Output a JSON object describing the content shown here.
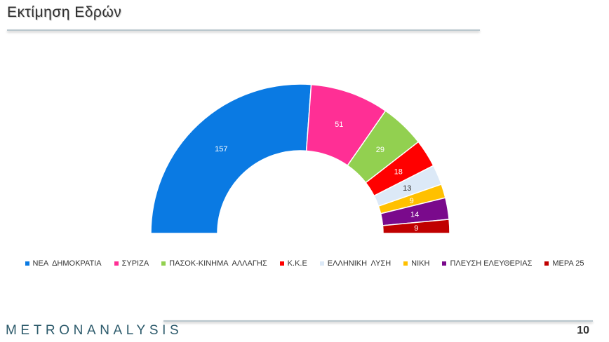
{
  "header": {
    "title": "Εκτίμηση Εδρών"
  },
  "footer": {
    "brand": "METRONANALYSIS",
    "page_number": "10"
  },
  "chart_data": {
    "type": "pie",
    "variant": "half-donut",
    "title": "",
    "total": 300,
    "legend_position": "bottom",
    "series": [
      {
        "name": "ΝΕΑ  ΔΗΜΟΚΡΑΤΙΑ",
        "value": 157,
        "color": "#0a7ae3"
      },
      {
        "name": "ΣΥΡΙΖΑ",
        "value": 51,
        "color": "#ff2f95"
      },
      {
        "name": "ΠΑΣΟΚ-ΚΙΝΗΜΑ  ΑΛΛΑΓΗΣ",
        "value": 29,
        "color": "#92d050"
      },
      {
        "name": "Κ.Κ.Ε",
        "value": 18,
        "color": "#ff0000"
      },
      {
        "name": "ΕΛΛΗΝΙΚΗ  ΛΥΣΗ",
        "value": 13,
        "color": "#dce9f7"
      },
      {
        "name": "ΝΙΚΗ",
        "value": 9,
        "color": "#ffc000"
      },
      {
        "name": "ΠΛΕΥΣΗ ΕΛΕΥΘΕΡΙΑΣ",
        "value": 14,
        "color": "#7a0a8c"
      },
      {
        "name": "ΜΕΡΑ 25",
        "value": 9,
        "color": "#c00000"
      }
    ]
  }
}
